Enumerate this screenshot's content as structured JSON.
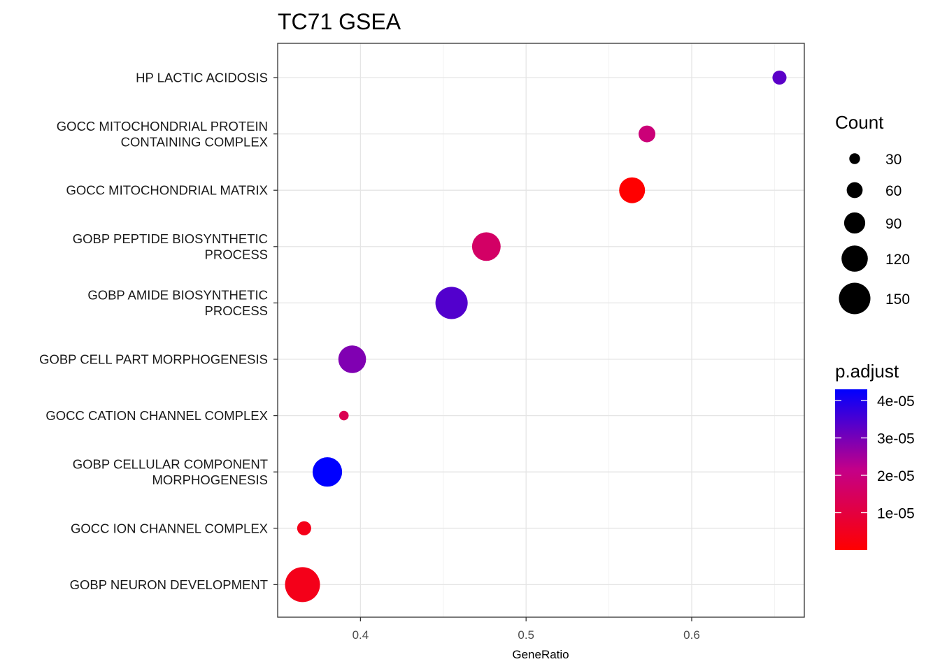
{
  "chart_data": {
    "type": "scatter",
    "title": "TC71 GSEA",
    "xlabel": "GeneRatio",
    "ylabel": "",
    "xlim": [
      0.35,
      0.668
    ],
    "xticks": [
      0.4,
      0.5,
      0.6
    ],
    "xtick_labels": [
      "0.4",
      "0.5",
      "0.6"
    ],
    "grid": true,
    "legend_position": "right",
    "size_legend": {
      "title": "Count",
      "values": [
        30,
        60,
        90,
        120,
        150
      ],
      "labels": [
        "30",
        "60",
        "90",
        "120",
        "150"
      ]
    },
    "color_legend": {
      "title": "p.adjust",
      "low_color": "#ff0000",
      "high_color": "#0000ff",
      "range": [
        0,
        4.3e-05
      ],
      "ticks": [
        1e-05,
        2e-05,
        3e-05,
        4e-05
      ],
      "tick_labels": [
        "1e-05",
        "2e-05",
        "3e-05",
        "4e-05"
      ]
    },
    "points": [
      {
        "label_lines": [
          "HP LACTIC ACIDOSIS"
        ],
        "x": 0.653,
        "count": 45,
        "p_adjust": 3.3e-05
      },
      {
        "label_lines": [
          "GOCC MITOCHONDRIAL PROTEIN",
          "CONTAINING COMPLEX"
        ],
        "x": 0.573,
        "count": 60,
        "p_adjust": 1.9e-05
      },
      {
        "label_lines": [
          "GOCC MITOCHONDRIAL MATRIX"
        ],
        "x": 0.564,
        "count": 110,
        "p_adjust": 0.0
      },
      {
        "label_lines": [
          "GOBP PEPTIDE BIOSYNTHETIC",
          "PROCESS"
        ],
        "x": 0.476,
        "count": 125,
        "p_adjust": 1.6e-05
      },
      {
        "label_lines": [
          "GOBP AMIDE BIOSYNTHETIC",
          "PROCESS"
        ],
        "x": 0.455,
        "count": 145,
        "p_adjust": 3.4e-05
      },
      {
        "label_lines": [
          "GOBP CELL PART MORPHOGENESIS"
        ],
        "x": 0.395,
        "count": 120,
        "p_adjust": 2.9e-05
      },
      {
        "label_lines": [
          "GOCC CATION CHANNEL COMPLEX"
        ],
        "x": 0.39,
        "count": 20,
        "p_adjust": 1.3e-05
      },
      {
        "label_lines": [
          "GOBP CELLULAR COMPONENT",
          "MORPHOGENESIS"
        ],
        "x": 0.38,
        "count": 130,
        "p_adjust": 4.3e-05
      },
      {
        "label_lines": [
          "GOCC ION CHANNEL COMPLEX"
        ],
        "x": 0.366,
        "count": 45,
        "p_adjust": 4e-06
      },
      {
        "label_lines": [
          "GOBP NEURON DEVELOPMENT"
        ],
        "x": 0.365,
        "count": 160,
        "p_adjust": 4e-06
      }
    ]
  }
}
